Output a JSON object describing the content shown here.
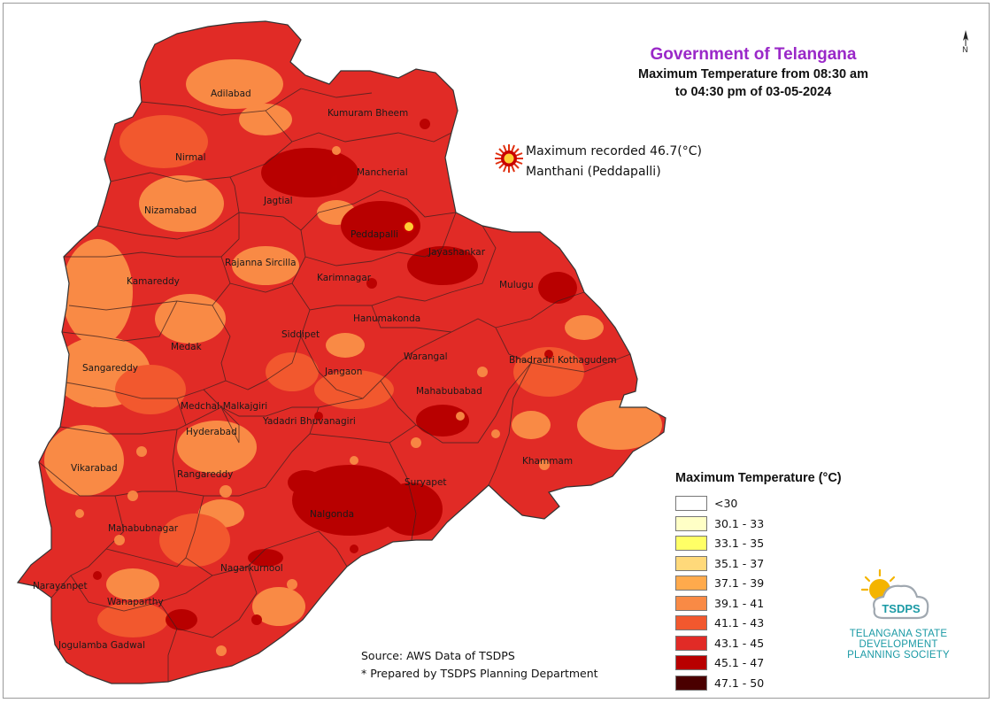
{
  "header": {
    "title": "Government of Telangana",
    "subtitle_line1": "Maximum Temperature from 08:30 am",
    "subtitle_line2": "to 04:30 pm of 03-05-2024"
  },
  "north_arrow": {
    "letter": "N",
    "icon": "north-arrow-icon"
  },
  "max_recorded": {
    "icon": "sun-burst-icon",
    "line1": "Maximum recorded 46.7(°C)",
    "line2": "Manthani (Peddapalli)",
    "value": 46.7,
    "unit": "°C",
    "place": "Manthani (Peddapalli)"
  },
  "legend": {
    "title": "Maximum Temperature (°C)",
    "items": [
      {
        "label": "<30",
        "color": "#ffffff"
      },
      {
        "label": "30.1 - 33",
        "color": "#ffffc6"
      },
      {
        "label": "33.1 - 35",
        "color": "#ffff66"
      },
      {
        "label": "35.1 - 37",
        "color": "#ffd97a"
      },
      {
        "label": "37.1 - 39",
        "color": "#ffaa4c"
      },
      {
        "label": "39.1 - 41",
        "color": "#f98a45"
      },
      {
        "label": "41.1 - 43",
        "color": "#f2582e"
      },
      {
        "label": "43.1 - 45",
        "color": "#e12b26"
      },
      {
        "label": "45.1 - 47",
        "color": "#b80000"
      },
      {
        "label": "47.1 - 50",
        "color": "#4a0000"
      }
    ]
  },
  "districts": [
    "Adilabad",
    "Kumuram Bheem",
    "Nirmal",
    "Mancherial",
    "Nizamabad",
    "Jagtial",
    "Peddapalli",
    "Jayashankar",
    "Rajanna Sircilla",
    "Kamareddy",
    "Karimnagar",
    "Mulugu",
    "Hanumakonda",
    "Medak",
    "Siddipet",
    "Sangareddy",
    "Warangal",
    "Bhadradri Kothagudem",
    "Jangaon",
    "Mahabubabad",
    "Medchal-Malkajgiri",
    "Yadadri Bhuvanagiri",
    "Hyderabad",
    "Vikarabad",
    "Rangareddy",
    "Khammam",
    "Suryapet",
    "Nalgonda",
    "Mahabubnagar",
    "Narayanpet",
    "Wanaparthy",
    "Nagarkurnool",
    "Jogulamba Gadwal"
  ],
  "source": {
    "line1": "Source: AWS Data of TSDPS",
    "line2": "* Prepared by TSDPS Planning Department"
  },
  "logo": {
    "icon": "tsdps-sun-cloud-icon",
    "acronym": "TSDPS",
    "line1": "TELANGANA STATE",
    "line2": "DEVELOPMENT",
    "line3": "PLANNING SOCIETY"
  }
}
